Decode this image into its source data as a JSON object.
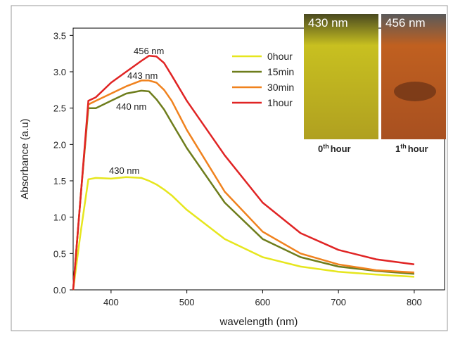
{
  "chart_data": {
    "type": "line",
    "x_label": "wavelength (nm)",
    "y_label": "Absorbance (a.u)",
    "x": [
      350,
      360,
      370,
      380,
      400,
      420,
      440,
      450,
      460,
      470,
      480,
      500,
      550,
      600,
      650,
      700,
      750,
      800
    ],
    "series": [
      {
        "name": "0hour",
        "color": "#e6e61e",
        "values": [
          0,
          0.8,
          1.52,
          1.54,
          1.53,
          1.55,
          1.54,
          1.5,
          1.45,
          1.38,
          1.3,
          1.1,
          0.7,
          0.45,
          0.32,
          0.25,
          0.21,
          0.18
        ]
      },
      {
        "name": "15min",
        "color": "#6e7d1c",
        "values": [
          0,
          1.3,
          2.5,
          2.5,
          2.6,
          2.7,
          2.74,
          2.73,
          2.62,
          2.48,
          2.3,
          1.95,
          1.2,
          0.7,
          0.45,
          0.32,
          0.26,
          0.22
        ]
      },
      {
        "name": "30min",
        "color": "#f0821e",
        "values": [
          0,
          1.3,
          2.55,
          2.6,
          2.7,
          2.8,
          2.88,
          2.88,
          2.85,
          2.75,
          2.6,
          2.2,
          1.35,
          0.8,
          0.5,
          0.35,
          0.27,
          0.24
        ]
      },
      {
        "name": "1hour",
        "color": "#e02424",
        "values": [
          0,
          1.3,
          2.6,
          2.65,
          2.85,
          3.0,
          3.15,
          3.22,
          3.21,
          3.12,
          2.95,
          2.6,
          1.85,
          1.2,
          0.78,
          0.55,
          0.42,
          0.35
        ]
      }
    ],
    "annotations": [
      "456 nm",
      "443 nm",
      "440 nm",
      "430 nm"
    ],
    "xlim": [
      350,
      840
    ],
    "ylim": [
      0,
      3.6
    ],
    "xticks": [
      400,
      500,
      600,
      700,
      800
    ],
    "yticks": [
      {
        "value": 0,
        "label": "0.0"
      },
      0.5,
      {
        "value": 1,
        "label": "1.0"
      },
      1.5,
      {
        "value": 2,
        "label": "2.0"
      },
      2.5,
      {
        "value": 3,
        "label": "3.0"
      },
      3.5
    ],
    "inset": {
      "left_label": "430 nm",
      "right_label": "456 nm",
      "left_caption": {
        "base": "0",
        "sup": "th",
        "rest": "hour"
      },
      "right_caption": {
        "base": "1",
        "sup": "th",
        "rest": "hour"
      }
    }
  }
}
